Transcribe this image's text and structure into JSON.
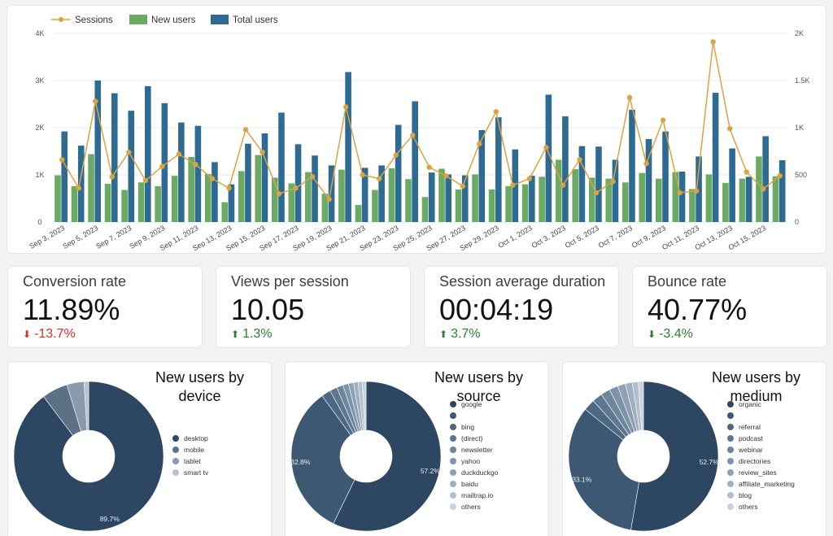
{
  "colors": {
    "sessions": "#d9a441",
    "new_users": "#6aaa64",
    "total_users": "#2f6a92",
    "grid": "#e8e8e8"
  },
  "chart_data": [
    {
      "type": "bar+line",
      "legend": [
        "Sessions",
        "New users",
        "Total users"
      ],
      "categories": [
        "Sep 3, 2023",
        "Sep 4, 2023",
        "Sep 5, 2023",
        "Sep 6, 2023",
        "Sep 7, 2023",
        "Sep 8, 2023",
        "Sep 9, 2023",
        "Sep 10, 2023",
        "Sep 11, 2023",
        "Sep 12, 2023",
        "Sep 13, 2023",
        "Sep 14, 2023",
        "Sep 15, 2023",
        "Sep 16, 2023",
        "Sep 17, 2023",
        "Sep 18, 2023",
        "Sep 19, 2023",
        "Sep 20, 2023",
        "Sep 21, 2023",
        "Sep 22, 2023",
        "Sep 23, 2023",
        "Sep 24, 2023",
        "Sep 25, 2023",
        "Sep 26, 2023",
        "Sep 27, 2023",
        "Sep 28, 2023",
        "Sep 29, 2023",
        "Sep 30, 2023",
        "Oct 1, 2023",
        "Oct 2, 2023",
        "Oct 3, 2023",
        "Oct 4, 2023",
        "Oct 5, 2023",
        "Oct 6, 2023",
        "Oct 7, 2023",
        "Oct 8, 2023",
        "Oct 9, 2023",
        "Oct 10, 2023",
        "Oct 11, 2023",
        "Oct 12, 2023",
        "Oct 13, 2023",
        "Oct 14, 2023",
        "Oct 15, 2023",
        "Oct 16, 2023"
      ],
      "x_tick_labels": [
        "Sep 3, 2023",
        "Sep 5, 2023",
        "Sep 7, 2023",
        "Sep 9, 2023",
        "Sep 11, 2023",
        "Sep 13, 2023",
        "Sep 15, 2023",
        "Sep 17, 2023",
        "Sep 19, 2023",
        "Sep 21, 2023",
        "Sep 23, 2023",
        "Sep 25, 2023",
        "Sep 27, 2023",
        "Sep 29, 2023",
        "Oct 1, 2023",
        "Oct 3, 2023",
        "Oct 5, 2023",
        "Oct 7, 2023",
        "Oct 9, 2023",
        "Oct 11, 2023",
        "Oct 13, 2023",
        "Oct 15, 2023"
      ],
      "series": [
        {
          "name": "New users",
          "axis": "left",
          "kind": "bar",
          "values": [
            990,
            760,
            1440,
            810,
            680,
            840,
            760,
            980,
            1380,
            1020,
            420,
            1080,
            1420,
            940,
            820,
            1060,
            600,
            1110,
            360,
            680,
            1140,
            910,
            530,
            1130,
            690,
            1010,
            690,
            760,
            800,
            960,
            1320,
            1120,
            940,
            920,
            840,
            1040,
            920,
            1060,
            700,
            1010,
            830,
            920,
            1390,
            970
          ]
        },
        {
          "name": "Total users",
          "axis": "left",
          "kind": "bar",
          "values": [
            1920,
            1620,
            3000,
            2730,
            2360,
            2880,
            2520,
            2110,
            2040,
            1270,
            800,
            1660,
            1880,
            2320,
            1650,
            1410,
            1200,
            3180,
            1150,
            1200,
            2060,
            2560,
            1050,
            1010,
            990,
            1950,
            2220,
            1540,
            980,
            2700,
            2240,
            1610,
            1600,
            1320,
            2380,
            1760,
            1920,
            1070,
            1390,
            2740,
            1560,
            960,
            1820,
            1310
          ]
        },
        {
          "name": "Sessions",
          "axis": "right",
          "kind": "line",
          "values": [
            660,
            360,
            1280,
            480,
            740,
            440,
            590,
            720,
            610,
            460,
            360,
            980,
            740,
            300,
            360,
            480,
            240,
            1220,
            500,
            460,
            710,
            920,
            580,
            490,
            380,
            830,
            1170,
            390,
            460,
            790,
            390,
            660,
            310,
            430,
            1320,
            620,
            1080,
            310,
            330,
            1910,
            990,
            530,
            350,
            490
          ]
        }
      ],
      "left_axis": {
        "ticks": [
          "0",
          "1K",
          "2K",
          "3K",
          "4K"
        ],
        "range": [
          0,
          4000
        ]
      },
      "right_axis": {
        "ticks": [
          "0",
          "500",
          "1K",
          "1.5K",
          "2K"
        ],
        "range": [
          0,
          2000
        ]
      }
    },
    {
      "type": "pie",
      "title": "New users by device",
      "slices": [
        {
          "label": "desktop",
          "value": 89.7,
          "color": "#2d4763"
        },
        {
          "label": "mobile",
          "value": 5.6,
          "color": "#5d7185"
        },
        {
          "label": "tablet",
          "value": 3.7,
          "color": "#8a9aac"
        },
        {
          "label": "smart tv",
          "value": 1.0,
          "color": "#b7c3cf"
        }
      ],
      "data_labels": [
        {
          "slice": 0,
          "text": "89.7%"
        }
      ]
    },
    {
      "type": "pie",
      "title": "New users by source",
      "slices": [
        {
          "label": "google",
          "value": 57.2,
          "color": "#2d4763"
        },
        {
          "label": "",
          "value": 32.8,
          "color": "#3d5873"
        },
        {
          "label": "bing",
          "value": 2.0,
          "color": "#4d6883"
        },
        {
          "label": "(direct)",
          "value": 1.6,
          "color": "#5d7791"
        },
        {
          "label": "newsletter",
          "value": 1.4,
          "color": "#6d859d"
        },
        {
          "label": "yahoo",
          "value": 1.2,
          "color": "#7e93a9"
        },
        {
          "label": "duckduckgo",
          "value": 1.1,
          "color": "#8fa1b5"
        },
        {
          "label": "baidu",
          "value": 1.0,
          "color": "#a1b0c1"
        },
        {
          "label": "mailtrap.io",
          "value": 0.9,
          "color": "#b3bfcd"
        },
        {
          "label": "others",
          "value": 0.8,
          "color": "#c9d2dc"
        }
      ],
      "data_labels": [
        {
          "slice": 0,
          "text": "57.2%"
        },
        {
          "slice": 1,
          "text": "32.8%"
        }
      ]
    },
    {
      "type": "pie",
      "title": "New users by medium",
      "slices": [
        {
          "label": "organic",
          "value": 52.7,
          "color": "#2d4763"
        },
        {
          "label": "",
          "value": 33.1,
          "color": "#3d5873"
        },
        {
          "label": "referral",
          "value": 2.5,
          "color": "#4d6883"
        },
        {
          "label": "podcast",
          "value": 2.2,
          "color": "#5d7791"
        },
        {
          "label": "webinar",
          "value": 2.0,
          "color": "#6d859d"
        },
        {
          "label": "directories",
          "value": 1.9,
          "color": "#7e93a9"
        },
        {
          "label": "review_sites",
          "value": 1.7,
          "color": "#8fa1b5"
        },
        {
          "label": "affiliate_marketing",
          "value": 1.5,
          "color": "#a1b0c1"
        },
        {
          "label": "blog",
          "value": 1.3,
          "color": "#b3bfcd"
        },
        {
          "label": "others",
          "value": 1.1,
          "color": "#c9d2dc"
        }
      ],
      "data_labels": [
        {
          "slice": 0,
          "text": "52.7%"
        },
        {
          "slice": 1,
          "text": "33.1%"
        }
      ]
    }
  ],
  "kpis": [
    {
      "title": "Conversion rate",
      "value": "11.89%",
      "delta": "-13.7%",
      "direction": "down",
      "arrow": "⬇"
    },
    {
      "title": "Views per session",
      "value": "10.05",
      "delta": "1.3%",
      "direction": "up",
      "arrow": "⬆"
    },
    {
      "title": "Session average duration",
      "value": "00:04:19",
      "delta": "3.7%",
      "direction": "up",
      "arrow": "⬆"
    },
    {
      "title": "Bounce rate",
      "value": "40.77%",
      "delta": "-3.4%",
      "direction": "down-good",
      "arrow": "⬇"
    }
  ]
}
